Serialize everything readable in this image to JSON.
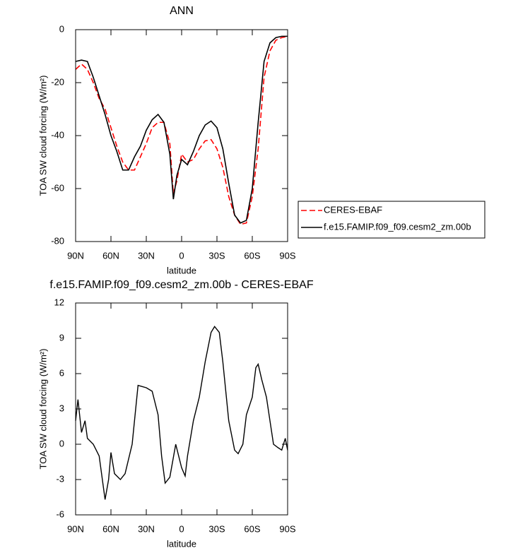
{
  "chart_data": [
    {
      "type": "line",
      "title": "ANN",
      "xlabel": "latitude",
      "ylabel": "TOA SW cloud forcing (W/m²)",
      "x": [
        90,
        85,
        80,
        75,
        70,
        65,
        60,
        55,
        50,
        45,
        40,
        35,
        30,
        25,
        20,
        15,
        10,
        7,
        4,
        0,
        -5,
        -10,
        -15,
        -20,
        -25,
        -30,
        -35,
        -40,
        -45,
        -50,
        -55,
        -60,
        -65,
        -70,
        -75,
        -80,
        -85,
        -90
      ],
      "series": [
        {
          "name": "CERES-EBAF",
          "color": "#ff0000",
          "dash": true,
          "values": [
            -15,
            -13,
            -15,
            -20,
            -26,
            -30,
            -37,
            -44,
            -50,
            -53,
            -53,
            -48,
            -43,
            -37,
            -35,
            -35,
            -43,
            -62,
            -57,
            -47,
            -50,
            -49,
            -45,
            -42,
            -41.5,
            -45,
            -52,
            -63,
            -70,
            -73.5,
            -73,
            -63,
            -45,
            -18,
            -8,
            -4,
            -3,
            -2.5
          ]
        },
        {
          "name": "f.e15.FAMIP.f09_f09.cesm2_zm.00b",
          "color": "#000000",
          "dash": false,
          "values": [
            -12,
            -11.5,
            -12,
            -18,
            -25,
            -32,
            -40,
            -46,
            -53,
            -53,
            -48,
            -44,
            -38,
            -34,
            -32,
            -35,
            -47,
            -64,
            -55,
            -49,
            -51,
            -46,
            -40,
            -36,
            -34.5,
            -37,
            -45,
            -58,
            -70,
            -73,
            -72,
            -60,
            -35,
            -12,
            -5,
            -3,
            -2.5,
            -2.5
          ]
        }
      ],
      "xlim": [
        90,
        -90
      ],
      "xticks": [
        {
          "value": 90,
          "label": "90N"
        },
        {
          "value": 60,
          "label": "60N"
        },
        {
          "value": 30,
          "label": "30N"
        },
        0,
        {
          "value": -30,
          "label": "30S"
        },
        {
          "value": -60,
          "label": "60S"
        },
        {
          "value": -90,
          "label": "90S"
        }
      ],
      "ylim": [
        -80,
        0
      ],
      "yticks": [
        -80,
        -60,
        -40,
        -20,
        0
      ],
      "legend": "right"
    },
    {
      "type": "line",
      "title": "f.e15.FAMIP.f09_f09.cesm2_zm.00b - CERES-EBAF",
      "xlabel": "latitude",
      "ylabel": "TOA SW cloud forcing (W/m²)",
      "x": [
        90,
        88,
        85,
        82,
        80,
        75,
        70,
        65,
        62,
        60,
        57,
        52,
        48,
        42,
        37,
        30,
        25,
        20,
        17,
        14,
        10,
        5,
        0,
        -3,
        -5,
        -10,
        -15,
        -20,
        -25,
        -28,
        -32,
        -35,
        -40,
        -45,
        -48,
        -52,
        -55,
        -60,
        -63,
        -65,
        -68,
        -72,
        -75,
        -78,
        -82,
        -85,
        -88,
        -90
      ],
      "values": [
        2,
        3.8,
        1,
        2,
        0.5,
        0,
        -1,
        -4.7,
        -3,
        -0.7,
        -2.5,
        -3,
        -2.5,
        0,
        5,
        4.8,
        4.5,
        2.5,
        -1,
        -3.3,
        -2.8,
        0,
        -2,
        -2.7,
        -1,
        2,
        4,
        7,
        9.5,
        10,
        9.5,
        7,
        2,
        -0.5,
        -0.8,
        0,
        2.5,
        4,
        6.5,
        6.8,
        5.5,
        4,
        2,
        0,
        -0.3,
        -0.5,
        0.5,
        -0.5
      ],
      "color": "#000000",
      "xlim": [
        90,
        -90
      ],
      "xticks": [
        {
          "value": 90,
          "label": "90N"
        },
        {
          "value": 60,
          "label": "60N"
        },
        {
          "value": 30,
          "label": "30N"
        },
        0,
        {
          "value": -30,
          "label": "30S"
        },
        {
          "value": -60,
          "label": "60S"
        },
        {
          "value": -90,
          "label": "90S"
        }
      ],
      "ylim": [
        -6,
        12
      ],
      "yticks": [
        -6,
        -3,
        0,
        3,
        6,
        9,
        12
      ]
    }
  ]
}
